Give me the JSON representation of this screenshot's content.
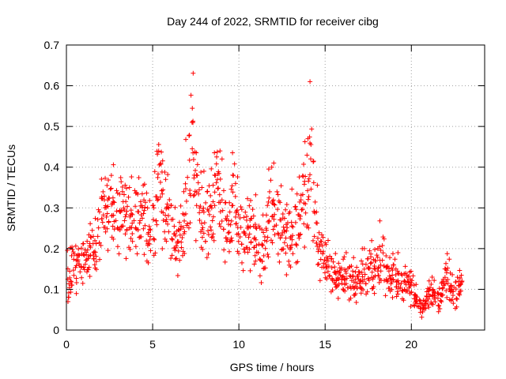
{
  "chart_data": {
    "type": "scatter",
    "title": "Day 244 of 2022, SRMTID for receiver cibg",
    "xlabel": "GPS time / hours",
    "ylabel": "SRMTID / TECUs",
    "xlim": [
      0,
      24.25
    ],
    "ylim": [
      0,
      0.7
    ],
    "x_ticks": [
      0,
      5,
      10,
      15,
      20
    ],
    "x_tick_labels": [
      "0",
      "5",
      "10",
      "15",
      "20"
    ],
    "y_ticks": [
      0,
      0.1,
      0.2,
      0.3,
      0.4,
      0.5,
      0.6,
      0.7
    ],
    "y_tick_labels": [
      "0",
      "0.1",
      "0.2",
      "0.3",
      "0.4",
      "0.5",
      "0.6",
      "0.7"
    ],
    "grid": true,
    "marker": "+",
    "series": [
      {
        "name": "SRMTID",
        "color": "#ff0000",
        "x": [
          0.0,
          0.15,
          0.3,
          0.45,
          0.6,
          0.75,
          0.9,
          1.05,
          1.2,
          1.35,
          1.5,
          1.65,
          1.8,
          1.95,
          2.1,
          2.25,
          2.4,
          2.55,
          2.7,
          2.85,
          3.0,
          3.15,
          3.3,
          3.45,
          3.6,
          3.75,
          3.9,
          4.05,
          4.2,
          4.35,
          4.5,
          4.65,
          4.8,
          4.95,
          5.1,
          5.25,
          5.4,
          5.55,
          5.7,
          5.85,
          6.0,
          6.15,
          6.3,
          6.45,
          6.6,
          6.75,
          6.9,
          7.05,
          7.2,
          7.35,
          7.5,
          7.65,
          7.8,
          7.95,
          8.1,
          8.25,
          8.4,
          8.55,
          8.7,
          8.85,
          9.0,
          9.15,
          9.3,
          9.45,
          9.6,
          9.75,
          9.9,
          10.05,
          10.2,
          10.35,
          10.5,
          10.65,
          10.8,
          10.95,
          11.1,
          11.25,
          11.4,
          11.55,
          11.7,
          11.85,
          12.0,
          12.15,
          12.3,
          12.45,
          12.6,
          12.75,
          12.9,
          13.05,
          13.2,
          13.35,
          13.5,
          13.65,
          13.8,
          13.95,
          14.1,
          14.25,
          14.4,
          14.55,
          14.7,
          14.85,
          15.0,
          15.15,
          15.3,
          15.45,
          15.6,
          15.75,
          15.9,
          16.05,
          16.2,
          16.35,
          16.5,
          16.65,
          16.8,
          16.95,
          17.1,
          17.25,
          17.4,
          17.55,
          17.7,
          17.85,
          18.0,
          18.15,
          18.3,
          18.45,
          18.6,
          18.75,
          18.9,
          19.05,
          19.2,
          19.35,
          19.5,
          19.65,
          19.8,
          19.95,
          20.1,
          20.25,
          20.4,
          20.55,
          20.7,
          20.85,
          21.0,
          21.15,
          21.3,
          21.45,
          21.6,
          21.75,
          21.9,
          22.05,
          22.2,
          22.35,
          22.5,
          22.65,
          22.8
        ],
        "y": [
          0.13,
          0.14,
          0.15,
          0.14,
          0.15,
          0.17,
          0.17,
          0.16,
          0.17,
          0.18,
          0.18,
          0.19,
          0.24,
          0.3,
          0.28,
          0.27,
          0.26,
          0.29,
          0.28,
          0.28,
          0.27,
          0.29,
          0.26,
          0.24,
          0.26,
          0.25,
          0.28,
          0.27,
          0.26,
          0.27,
          0.25,
          0.22,
          0.22,
          0.25,
          0.3,
          0.37,
          0.32,
          0.28,
          0.28,
          0.27,
          0.25,
          0.22,
          0.2,
          0.19,
          0.21,
          0.25,
          0.3,
          0.38,
          0.48,
          0.37,
          0.3,
          0.28,
          0.26,
          0.25,
          0.27,
          0.28,
          0.26,
          0.3,
          0.36,
          0.33,
          0.28,
          0.25,
          0.22,
          0.25,
          0.3,
          0.27,
          0.25,
          0.24,
          0.22,
          0.23,
          0.22,
          0.21,
          0.21,
          0.22,
          0.2,
          0.19,
          0.18,
          0.21,
          0.26,
          0.29,
          0.27,
          0.27,
          0.25,
          0.23,
          0.21,
          0.2,
          0.21,
          0.22,
          0.24,
          0.26,
          0.27,
          0.29,
          0.3,
          0.34,
          0.4,
          0.33,
          0.24,
          0.19,
          0.17,
          0.16,
          0.16,
          0.15,
          0.14,
          0.13,
          0.12,
          0.11,
          0.12,
          0.13,
          0.12,
          0.12,
          0.12,
          0.1,
          0.1,
          0.11,
          0.14,
          0.13,
          0.14,
          0.15,
          0.12,
          0.13,
          0.14,
          0.17,
          0.18,
          0.14,
          0.12,
          0.11,
          0.12,
          0.11,
          0.12,
          0.11,
          0.11,
          0.11,
          0.1,
          0.09,
          0.08,
          0.07,
          0.06,
          0.05,
          0.06,
          0.07,
          0.08,
          0.09,
          0.08,
          0.07,
          0.08,
          0.1,
          0.11,
          0.12,
          0.1,
          0.08,
          0.09,
          0.1,
          0.11
        ],
        "spread": [
          0.05,
          0.05,
          0.06,
          0.06,
          0.05,
          0.05,
          0.06,
          0.05,
          0.06,
          0.06,
          0.05,
          0.06,
          0.08,
          0.1,
          0.08,
          0.08,
          0.08,
          0.09,
          0.09,
          0.09,
          0.09,
          0.1,
          0.09,
          0.08,
          0.09,
          0.09,
          0.09,
          0.09,
          0.09,
          0.08,
          0.08,
          0.08,
          0.07,
          0.08,
          0.12,
          0.14,
          0.11,
          0.1,
          0.09,
          0.08,
          0.08,
          0.07,
          0.07,
          0.07,
          0.07,
          0.09,
          0.12,
          0.14,
          0.13,
          0.11,
          0.1,
          0.1,
          0.09,
          0.1,
          0.1,
          0.1,
          0.09,
          0.1,
          0.12,
          0.11,
          0.1,
          0.09,
          0.08,
          0.09,
          0.1,
          0.09,
          0.09,
          0.09,
          0.08,
          0.08,
          0.08,
          0.08,
          0.07,
          0.08,
          0.08,
          0.08,
          0.08,
          0.09,
          0.1,
          0.11,
          0.1,
          0.1,
          0.09,
          0.09,
          0.08,
          0.08,
          0.08,
          0.09,
          0.09,
          0.1,
          0.1,
          0.11,
          0.12,
          0.13,
          0.15,
          0.12,
          0.1,
          0.08,
          0.06,
          0.05,
          0.05,
          0.05,
          0.05,
          0.05,
          0.04,
          0.04,
          0.05,
          0.05,
          0.05,
          0.05,
          0.05,
          0.04,
          0.04,
          0.05,
          0.06,
          0.05,
          0.05,
          0.06,
          0.05,
          0.05,
          0.06,
          0.07,
          0.07,
          0.06,
          0.05,
          0.04,
          0.05,
          0.04,
          0.05,
          0.04,
          0.04,
          0.04,
          0.04,
          0.04,
          0.03,
          0.03,
          0.02,
          0.02,
          0.02,
          0.03,
          0.03,
          0.04,
          0.03,
          0.03,
          0.03,
          0.04,
          0.05,
          0.05,
          0.04,
          0.04,
          0.04,
          0.04,
          0.04
        ]
      }
    ]
  }
}
